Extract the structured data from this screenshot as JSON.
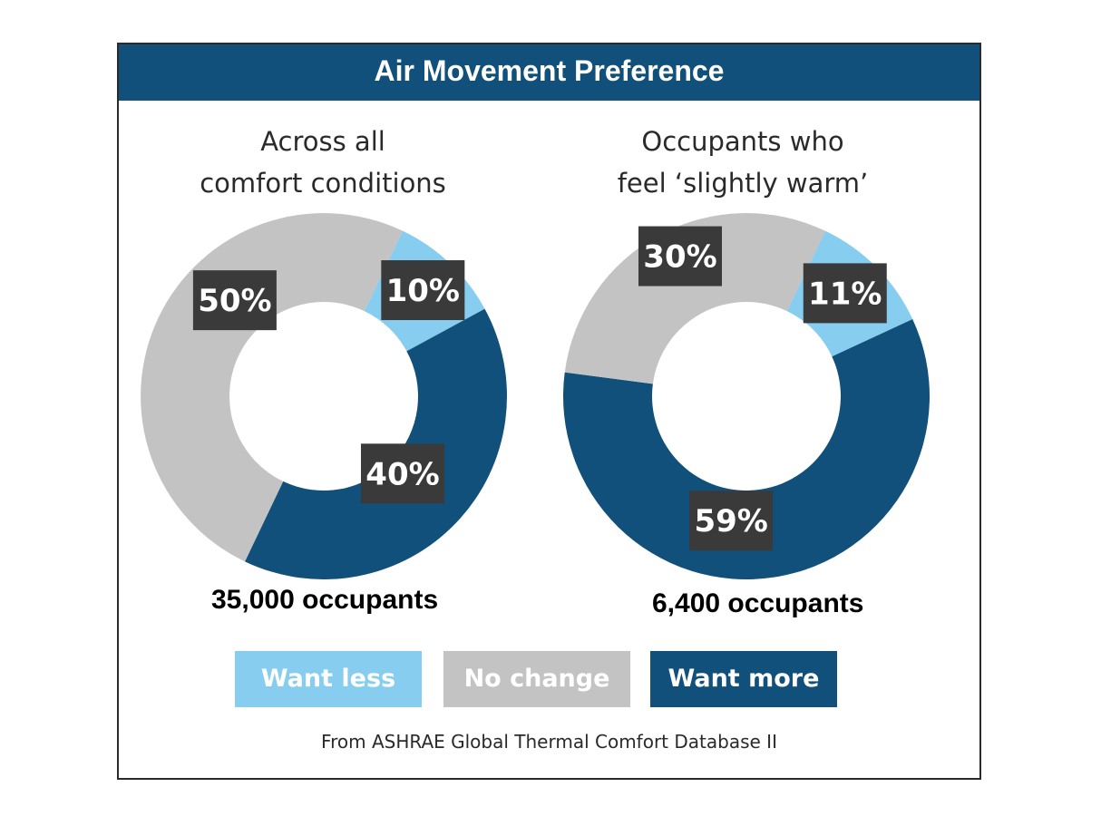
{
  "title": "Air Movement Preference",
  "colors": {
    "want_less": "#86cdf0",
    "no_change": "#c3c3c3",
    "want_more": "#10507a",
    "label_box": "#3a3a3a",
    "title_bar": "#10507a"
  },
  "chart_data": [
    {
      "type": "pie",
      "title_lines": [
        "Across all",
        "comfort conditions"
      ],
      "categories": [
        "Want less",
        "Want more",
        "No change"
      ],
      "values": [
        10,
        40,
        50
      ],
      "labels": [
        "10%",
        "40%",
        "50%"
      ],
      "footnote": "35,000 occupants"
    },
    {
      "type": "pie",
      "title_lines": [
        "Occupants who",
        "feel ‘slightly warm’"
      ],
      "categories": [
        "Want less",
        "Want more",
        "No change"
      ],
      "values": [
        11,
        59,
        30
      ],
      "labels": [
        "11%",
        "59%",
        "30%"
      ],
      "footnote": "6,400 occupants"
    }
  ],
  "legend": [
    {
      "label": "Want less",
      "key": "want_less"
    },
    {
      "label": "No change",
      "key": "no_change"
    },
    {
      "label": "Want more",
      "key": "want_more"
    }
  ],
  "source": "From ASHRAE Global Thermal Comfort Database II"
}
